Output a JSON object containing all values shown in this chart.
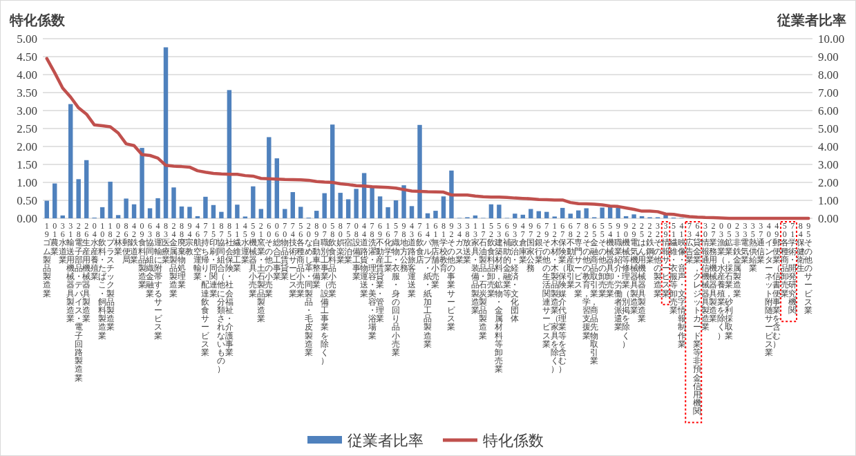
{
  "chart_data": {
    "type": "bar",
    "ylabel": "特化係数",
    "y2label": "従業者比率",
    "grid": "y",
    "legend": "bottom",
    "ylim": [
      0,
      5
    ],
    "yticks": [
      {
        "value": 0,
        "label": "0.00"
      },
      {
        "value": 0.5,
        "label": "0.50"
      },
      {
        "value": 1,
        "label": "1.00"
      },
      {
        "value": 1.5,
        "label": "1.50"
      },
      {
        "value": 2,
        "label": "2.00"
      },
      {
        "value": 2.5,
        "label": "2.50"
      },
      {
        "value": 3,
        "label": "3.00"
      },
      {
        "value": 3.5,
        "label": "3.50"
      },
      {
        "value": 4,
        "label": "4.00"
      },
      {
        "value": 4.5,
        "label": "4.50"
      },
      {
        "value": 5,
        "label": "5.00"
      }
    ],
    "y2lim": [
      0,
      10
    ],
    "y2ticks": [
      {
        "value": 0,
        "label": "0.00"
      },
      {
        "value": 1,
        "label": "1.00"
      },
      {
        "value": 2,
        "label": "2.00"
      },
      {
        "value": 3,
        "label": "3.00"
      },
      {
        "value": 4,
        "label": "4.00"
      },
      {
        "value": 5,
        "label": "5.00"
      },
      {
        "value": 6,
        "label": "6.00"
      },
      {
        "value": 7,
        "label": "7.00"
      },
      {
        "value": 8,
        "label": "8.00"
      },
      {
        "value": 9,
        "label": "9.00"
      },
      {
        "value": 10,
        "label": "10.00"
      }
    ],
    "categories": [
      "19ゴム製品製造業",
      "01農業",
      "36水道業",
      "31輸送用機械器具製造業",
      "28電子部品・デバイス・電子回路製造業",
      "26生産用機械器具製造業",
      "04水産養殖業",
      "10飲料・たばこ・飼料製造業",
      "18プラスチック製品製造業",
      "02林業",
      "86郵便局",
      "42鉄道業",
      "09食料品製造業",
      "63協同組織金融業",
      "48運輸に附帯するサービス業",
      "83医療業",
      "24金属製品製造業",
      "88廃棄物処理業",
      "94宗教",
      "46航空運輸業",
      "77持ち帰り・配達飲食サービス業",
      "15印刷・同関連業",
      "87協同組合（他に分類されないもの）",
      "85社会保険・社会福祉・介護事業",
      "11繊維工業",
      "45水運業",
      "59機械器具小売業",
      "21窯業・土石製品製造業",
      "60その他の小売業",
      "06総合工事業",
      "70物品賃貸業",
      "74技術サービス業",
      "56各種商品小売業",
      "20なめし革・同製品・毛皮製造業",
      "89自動車整備業",
      "07職別工事業（設備工事業を除く）",
      "58飲食料品小売業",
      "80娯楽業",
      "75宿泊業",
      "08設備工事業",
      "44道路貨物運送業",
      "78洗濯・理容・美容・浴場業",
      "69不動産賃貸業・管理業",
      "16化学工業",
      "57織物・衣服・身の回り品小売業",
      "98地方公務",
      "43道路旅客運送業",
      "76飲食店",
      "14パルプ・紙・紙加工品製造業",
      "61無店舗小売業",
      "81学校教育",
      "92その他の事業サービス業",
      "34ガス業",
      "38放送業",
      "13家具・装備品製造業",
      "17石油製品・石炭製品製造業",
      "52飲食料品卸売業",
      "53建築材料，鉱物・金属材料等卸売業",
      "66補助的金融業等",
      "93政治・経済・文化団体",
      "47倉庫業",
      "97国家公務",
      "62銀行業",
      "79その他の生活関連サービス業",
      "12木材・木製品製造業（家具を除く）",
      "67保険業（保険媒介代理業等を含む）",
      "68不動産取引業",
      "72専門サービス業",
      "82その他の教育，学習支援業",
      "65金融商品取引業，商品先物取引業",
      "55その他の卸売業",
      "54機械器具卸売業",
      "91職業紹介・労働者派遣業",
      "90機械等修理業（別掲を除く）",
      "29電気機械器具製造業",
      "25はん用機械器具製造業",
      "22鉄鋼業",
      "32その他の製造業",
      "39情報サービス業",
      "51繊維・衣服等卸売業",
      "41映像・音声・文字情報制作業",
      "73広告業",
      "64貸金業，クレジットカード業等非預金信用機関",
      "30情報通信機械器具製造業",
      "27業務用機械器具製造業",
      "03漁業（水産養殖業を除く）",
      "05鉱業，採石業，砂利採取業",
      "23非鉄金属製造業",
      "33電気業",
      "35熱供給業",
      "37通信業",
      "40インターネット附随サービス業",
      "49郵便業（信書便事業を含む）",
      "50各種商品卸売業",
      "71学術・開発研究機関",
      "84保健衛生",
      "95その他のサービス業"
    ],
    "series": [
      {
        "name": "従業者比率",
        "type": "bar",
        "color": "#4f81bd",
        "values": [
          0.49,
          0.97,
          0.08,
          3.18,
          1.09,
          1.62,
          0.02,
          0.31,
          1.02,
          0.09,
          0.55,
          0.39,
          1.96,
          0.28,
          0.56,
          4.76,
          0.86,
          0.33,
          0.32,
          0.06,
          0.6,
          0.37,
          0.18,
          3.57,
          0.38,
          0.05,
          0.89,
          0.26,
          2.26,
          1.67,
          0.26,
          0.73,
          0.32,
          0.02,
          0.21,
          0.7,
          2.61,
          0.71,
          0.53,
          0.82,
          1.26,
          0.87,
          0.61,
          0.31,
          0.5,
          0.92,
          0.34,
          2.6,
          0.14,
          0.21,
          0.61,
          1.33,
          0.01,
          0.03,
          0.08,
          0.01,
          0.39,
          0.38,
          0.01,
          0.13,
          0.1,
          0.26,
          0.2,
          0.18,
          0.05,
          0.29,
          0.13,
          0.22,
          0.28,
          0.03,
          0.3,
          0.31,
          0.29,
          0.06,
          0.11,
          0.06,
          0.03,
          0.03,
          0.1,
          0.02,
          0.01,
          0,
          0,
          0,
          0,
          0,
          0,
          0,
          0,
          0,
          0,
          0,
          0,
          0,
          0,
          0,
          0
        ]
      },
      {
        "name": "特化係数",
        "type": "line",
        "axis": "y2",
        "color": "#c0504d",
        "values": [
          8.9,
          8.1,
          7.25,
          6.75,
          6.15,
          5.8,
          5.2,
          5.15,
          5.1,
          4.75,
          4.15,
          4.05,
          3.55,
          3.5,
          3.35,
          2.95,
          2.9,
          2.88,
          2.85,
          2.65,
          2.57,
          2.5,
          2.47,
          2.45,
          2.45,
          2.38,
          2.35,
          2.22,
          2.2,
          2.18,
          2.16,
          2.15,
          2.14,
          2.12,
          2.05,
          2.02,
          2.0,
          1.92,
          1.88,
          1.82,
          1.8,
          1.76,
          1.74,
          1.72,
          1.68,
          1.6,
          1.52,
          1.5,
          1.48,
          1.47,
          1.46,
          1.3,
          1.3,
          1.3,
          1.24,
          1.2,
          1.18,
          1.18,
          1.16,
          1.13,
          1.11,
          1.09,
          1.05,
          1.04,
          1.02,
          1.02,
          0.88,
          0.82,
          0.81,
          0.79,
          0.75,
          0.68,
          0.66,
          0.58,
          0.5,
          0.4,
          0.4,
          0.37,
          0.24,
          0.22,
          0.15,
          0.1,
          0.07,
          0.05,
          0.04,
          0.02,
          0,
          0,
          0,
          0,
          0,
          0,
          0,
          0,
          0,
          0,
          0
        ]
      }
    ]
  }
}
